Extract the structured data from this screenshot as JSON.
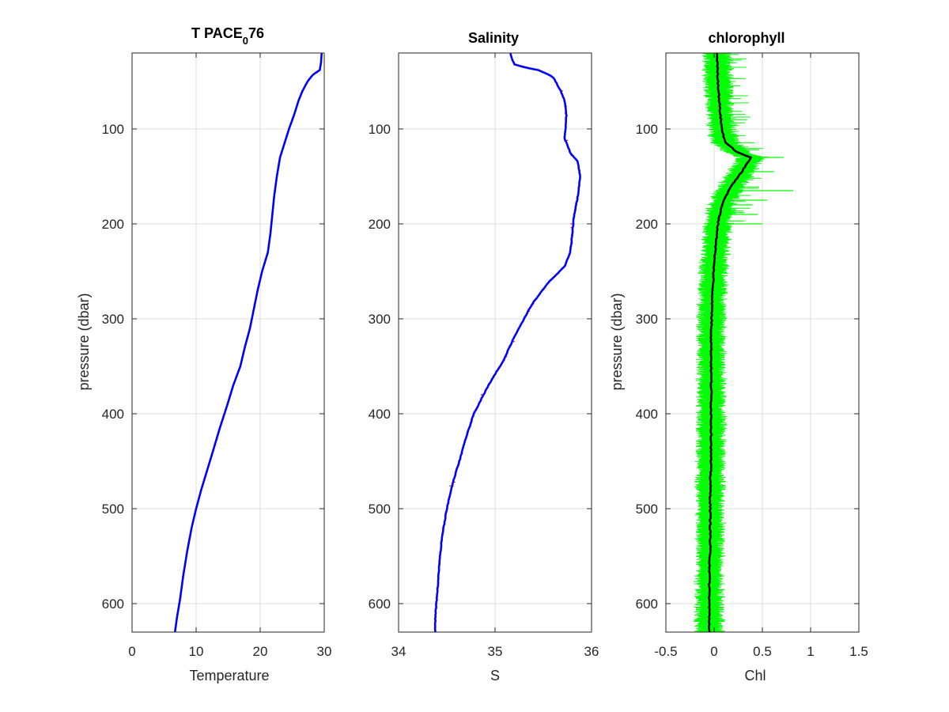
{
  "chart_data": [
    {
      "type": "line",
      "title": "T PACE",
      "title_subscript": "0",
      "title_suffix": "76",
      "xlabel": "Temperature",
      "ylabel": "pressure (dbar)",
      "xlim": [
        0,
        30
      ],
      "ylim": [
        20,
        630
      ],
      "y_reversed": true,
      "xticks": [
        "0",
        "10",
        "20",
        "30"
      ],
      "yticks": [
        "100",
        "200",
        "300",
        "400",
        "500",
        "600"
      ],
      "grid": true,
      "series": [
        {
          "color": "#0000ff",
          "points": [
            [
              29.6,
              20
            ],
            [
              29.5,
              30
            ],
            [
              29.3,
              38
            ],
            [
              28.2,
              43
            ],
            [
              27.4,
              50
            ],
            [
              26.6,
              60
            ],
            [
              26.0,
              70
            ],
            [
              25.3,
              85
            ],
            [
              24.5,
              100
            ],
            [
              23.8,
              115
            ],
            [
              23.1,
              130
            ],
            [
              22.6,
              150
            ],
            [
              22.2,
              170
            ],
            [
              21.9,
              190
            ],
            [
              21.6,
              210
            ],
            [
              21.2,
              230
            ],
            [
              20.3,
              250
            ],
            [
              19.6,
              270
            ],
            [
              19.0,
              290
            ],
            [
              18.4,
              310
            ],
            [
              17.6,
              330
            ],
            [
              16.9,
              350
            ],
            [
              15.8,
              370
            ],
            [
              14.9,
              390
            ],
            [
              13.7,
              415
            ],
            [
              12.6,
              440
            ],
            [
              11.7,
              460
            ],
            [
              10.8,
              480
            ],
            [
              10.0,
              500
            ],
            [
              9.3,
              520
            ],
            [
              8.6,
              545
            ],
            [
              8.0,
              570
            ],
            [
              7.5,
              595
            ],
            [
              7.0,
              615
            ],
            [
              6.7,
              630
            ]
          ]
        }
      ]
    },
    {
      "type": "line",
      "title": "Salinity",
      "xlabel": "S",
      "ylabel": "",
      "xlim": [
        34,
        36
      ],
      "ylim": [
        20,
        630
      ],
      "y_reversed": true,
      "xticks": [
        "34",
        "35",
        "36"
      ],
      "yticks": [
        "100",
        "200",
        "300",
        "400",
        "500",
        "600"
      ],
      "grid": true,
      "series": [
        {
          "color": "#0000ff",
          "points": [
            [
              35.16,
              20
            ],
            [
              35.18,
              27
            ],
            [
              35.2,
              32
            ],
            [
              35.3,
              35
            ],
            [
              35.45,
              38
            ],
            [
              35.6,
              45
            ],
            [
              35.68,
              60
            ],
            [
              35.72,
              70
            ],
            [
              35.74,
              85
            ],
            [
              35.73,
              100
            ],
            [
              35.72,
              110
            ],
            [
              35.78,
              125
            ],
            [
              35.86,
              135
            ],
            [
              35.88,
              150
            ],
            [
              35.86,
              170
            ],
            [
              35.82,
              190
            ],
            [
              35.8,
              210
            ],
            [
              35.78,
              230
            ],
            [
              35.72,
              245
            ],
            [
              35.55,
              262
            ],
            [
              35.38,
              285
            ],
            [
              35.22,
              315
            ],
            [
              35.08,
              345
            ],
            [
              34.96,
              365
            ],
            [
              34.88,
              380
            ],
            [
              34.78,
              400
            ],
            [
              34.7,
              425
            ],
            [
              34.63,
              450
            ],
            [
              34.57,
              470
            ],
            [
              34.5,
              500
            ],
            [
              34.45,
              530
            ],
            [
              34.42,
              560
            ],
            [
              34.4,
              590
            ],
            [
              34.38,
              615
            ],
            [
              34.38,
              630
            ]
          ]
        }
      ],
      "noise_color": "#ff0000"
    },
    {
      "type": "line",
      "title": "chlorophyll",
      "xlabel": "Chl",
      "ylabel": "pressure (dbar)",
      "xlim": [
        -0.5,
        1.5
      ],
      "ylim": [
        20,
        630
      ],
      "y_reversed": true,
      "xticks": [
        "-0.5",
        "0",
        "0.5",
        "1",
        "1.5"
      ],
      "yticks": [
        "100",
        "200",
        "300",
        "400",
        "500",
        "600"
      ],
      "grid": true,
      "series": [
        {
          "color": "#000000",
          "points": [
            [
              0.03,
              20
            ],
            [
              0.04,
              50
            ],
            [
              0.06,
              80
            ],
            [
              0.08,
              100
            ],
            [
              0.12,
              115
            ],
            [
              0.25,
              125
            ],
            [
              0.38,
              130
            ],
            [
              0.32,
              140
            ],
            [
              0.25,
              150
            ],
            [
              0.15,
              165
            ],
            [
              0.08,
              180
            ],
            [
              0.04,
              200
            ],
            [
              0.0,
              240
            ],
            [
              -0.02,
              280
            ],
            [
              -0.03,
              320
            ],
            [
              -0.03,
              380
            ],
            [
              -0.03,
              430
            ],
            [
              -0.04,
              480
            ],
            [
              -0.04,
              530
            ],
            [
              -0.05,
              580
            ],
            [
              -0.05,
              630
            ]
          ]
        }
      ],
      "band_color": "#00ff00",
      "spikes": [
        [
          0.82,
          165
        ],
        [
          0.72,
          130
        ],
        [
          0.62,
          145
        ],
        [
          0.55,
          175
        ],
        [
          0.5,
          200
        ],
        [
          0.45,
          190
        ],
        [
          0.4,
          180
        ]
      ]
    }
  ]
}
